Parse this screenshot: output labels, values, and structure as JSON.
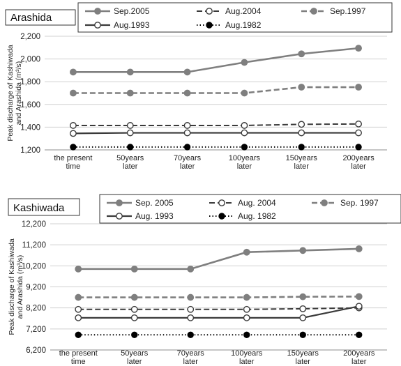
{
  "chart_data": [
    {
      "type": "line",
      "title": "Arashida",
      "ylabel": "Peak discharge of Kashiwada and Arashida (m³/s)",
      "ylim": [
        1200,
        2200
      ],
      "yticks": [
        "1,200",
        "1,400",
        "1,600",
        "1,800",
        "2,000",
        "2,200"
      ],
      "categories": [
        "the present time",
        "50years later",
        "70years later",
        "100years later",
        "150years later",
        "200years later"
      ],
      "grid": true,
      "legend": "top",
      "series": [
        {
          "name": "Sep.2005",
          "style": "solid-gray",
          "values": [
            1885,
            1885,
            1885,
            1970,
            2045,
            2095
          ]
        },
        {
          "name": "Aug.2004",
          "style": "dashed-open",
          "values": [
            1415,
            1415,
            1415,
            1415,
            1425,
            1428
          ]
        },
        {
          "name": "Sep.1997",
          "style": "dashed-gray",
          "values": [
            1700,
            1700,
            1700,
            1700,
            1752,
            1752
          ]
        },
        {
          "name": "Aug.1993",
          "style": "solid-open",
          "values": [
            1345,
            1350,
            1350,
            1350,
            1350,
            1350
          ]
        },
        {
          "name": "Aug.1982",
          "style": "dotted-black",
          "values": [
            1225,
            1225,
            1225,
            1225,
            1225,
            1225
          ]
        }
      ]
    },
    {
      "type": "line",
      "title": "Kashiwada",
      "ylabel": "Peak discharge of Kashiwada and Arashida (m³/s)",
      "ylim": [
        6200,
        12200
      ],
      "yticks": [
        "6,200",
        "7,200",
        "8,200",
        "9,200",
        "10,200",
        "11,200",
        "12,200"
      ],
      "categories": [
        "the present time",
        "50years later",
        "70years later",
        "100years later",
        "150years later",
        "200years later"
      ],
      "grid": true,
      "legend": "top",
      "series": [
        {
          "name": "Sep. 2005",
          "style": "solid-gray",
          "values": [
            10050,
            10050,
            10050,
            10850,
            10930,
            11010
          ]
        },
        {
          "name": "Aug. 2004",
          "style": "dashed-open",
          "values": [
            8130,
            8130,
            8130,
            8130,
            8160,
            8200
          ]
        },
        {
          "name": "Sep. 1997",
          "style": "dashed-gray",
          "values": [
            8700,
            8700,
            8700,
            8700,
            8730,
            8740
          ]
        },
        {
          "name": "Aug. 1993",
          "style": "solid-open",
          "values": [
            7730,
            7730,
            7730,
            7730,
            7730,
            8280
          ]
        },
        {
          "name": "Aug. 1982",
          "style": "dotted-black",
          "values": [
            6920,
            6920,
            6920,
            6920,
            6920,
            6920
          ]
        }
      ]
    }
  ]
}
